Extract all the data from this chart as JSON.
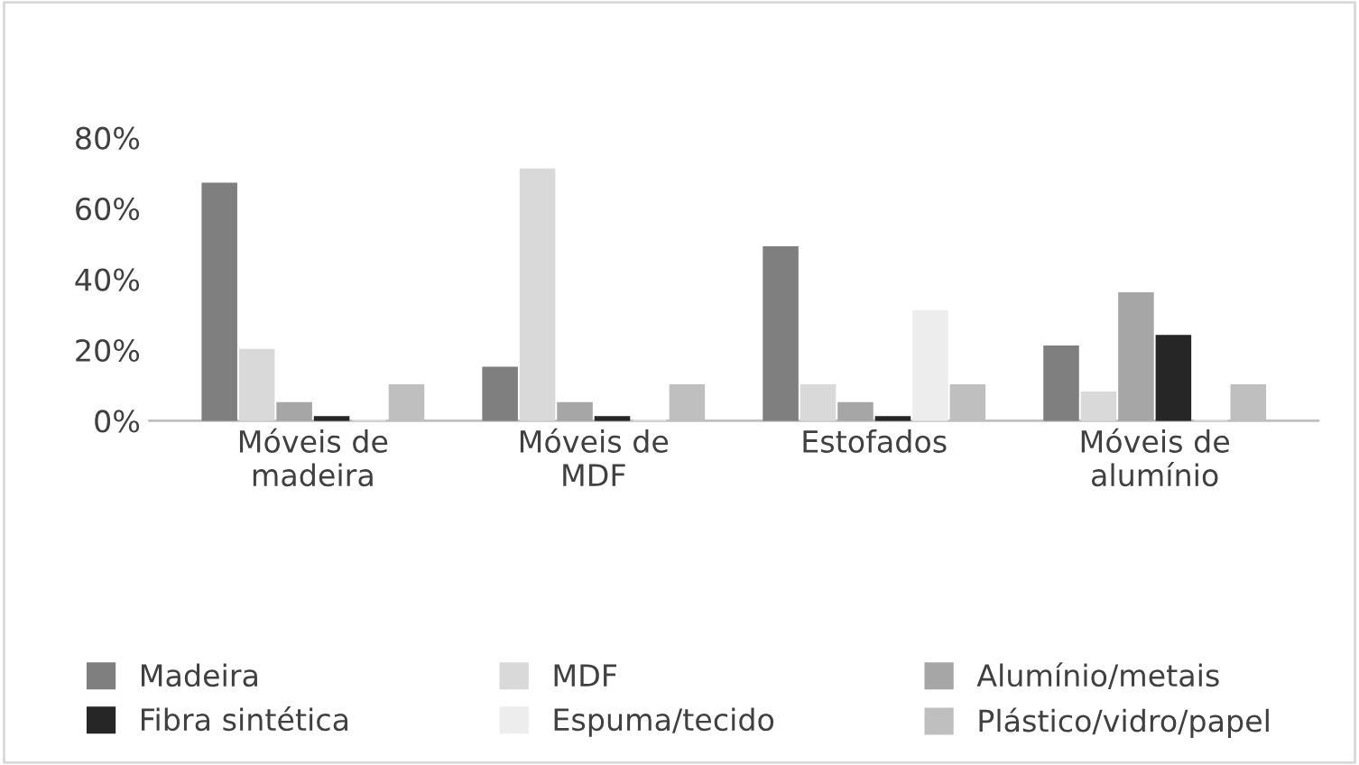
{
  "chart_data": {
    "type": "bar",
    "categories": [
      "Móveis de\nmadeira",
      "Móveis de\nMDF",
      "Estofados",
      "Móveis de\nalumínio"
    ],
    "series": [
      {
        "name": "Madeira",
        "color": "#7f7f7f",
        "values": [
          67,
          15,
          49,
          21
        ]
      },
      {
        "name": "MDF",
        "color": "#d9d9d9",
        "values": [
          20,
          71,
          10,
          8
        ]
      },
      {
        "name": "Alumínio/metais",
        "color": "#a6a6a6",
        "values": [
          5,
          5,
          5,
          36
        ]
      },
      {
        "name": "Fibra sintética",
        "color": "#262626",
        "values": [
          1,
          1,
          1,
          24
        ]
      },
      {
        "name": "Espuma/tecido",
        "color": "#ededed",
        "values": [
          0,
          0,
          31,
          0
        ]
      },
      {
        "name": "Plástico/vidro/papel",
        "color": "#bfbfbf",
        "values": [
          10,
          10,
          10,
          10
        ]
      }
    ],
    "ylim": [
      0,
      80
    ],
    "yticks": [
      {
        "value": 0,
        "label": "0%"
      },
      {
        "value": 20,
        "label": "20%"
      },
      {
        "value": 40,
        "label": "40%"
      },
      {
        "value": 60,
        "label": "60%"
      },
      {
        "value": 80,
        "label": "80%"
      }
    ],
    "grid": false,
    "legend": "bottom"
  }
}
